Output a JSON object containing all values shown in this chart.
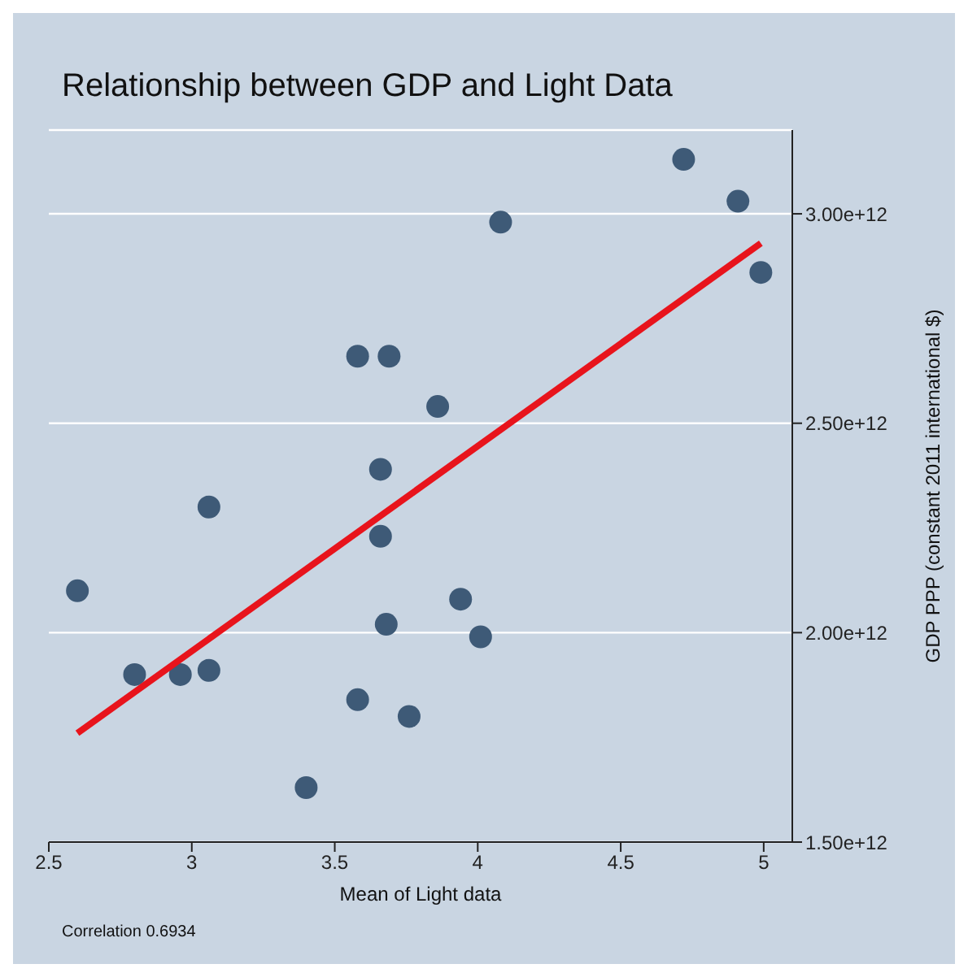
{
  "chart_data": {
    "type": "scatter",
    "title": "Relationship between GDP and Light Data",
    "xlabel": "Mean of Light data",
    "ylabel": "GDP PPP (constant 2011 international $)",
    "annotations": [
      "Correlation 0.6934"
    ],
    "x": [
      2.6,
      2.8,
      2.96,
      3.06,
      3.06,
      3.4,
      3.58,
      3.58,
      3.69,
      3.66,
      3.66,
      3.68,
      3.76,
      3.86,
      3.94,
      4.01,
      4.08,
      4.72,
      4.91,
      4.99
    ],
    "series": [
      {
        "color": "#3e5a77",
        "marker": "circle",
        "values": [
          2100000000000.0,
          1900000000000.0,
          1900000000000.0,
          1910000000000.0,
          2300000000000.0,
          1630000000000.0,
          1840000000000.0,
          2660000000000.0,
          2660000000000.0,
          2390000000000.0,
          2230000000000.0,
          2020000000000.0,
          1800000000000.0,
          2540000000000.0,
          2080000000000.0,
          1990000000000.0,
          2980000000000.0,
          3130000000000.0,
          3030000000000.0,
          2860000000000.0
        ]
      },
      {
        "type": "line",
        "marker": "none",
        "color": "#e8141c",
        "x": [
          2.6,
          4.99
        ],
        "values": [
          1760000000000.0,
          2930000000000.0
        ]
      }
    ],
    "xlim": [
      2.5,
      5.1
    ],
    "xticks": [
      2.5,
      3,
      3.5,
      4,
      4.5,
      5
    ],
    "ylim": [
      1500000000000.0,
      3200000000000.0
    ],
    "yticks": [
      {
        "value": 1500000000000.0,
        "label": "1.50e+12"
      },
      {
        "value": 2000000000000.0,
        "label": "2.00e+12"
      },
      {
        "value": 2500000000000.0,
        "label": "2.50e+12"
      },
      {
        "value": 3000000000000.0,
        "label": "3.00e+12"
      }
    ],
    "grid": "y"
  }
}
